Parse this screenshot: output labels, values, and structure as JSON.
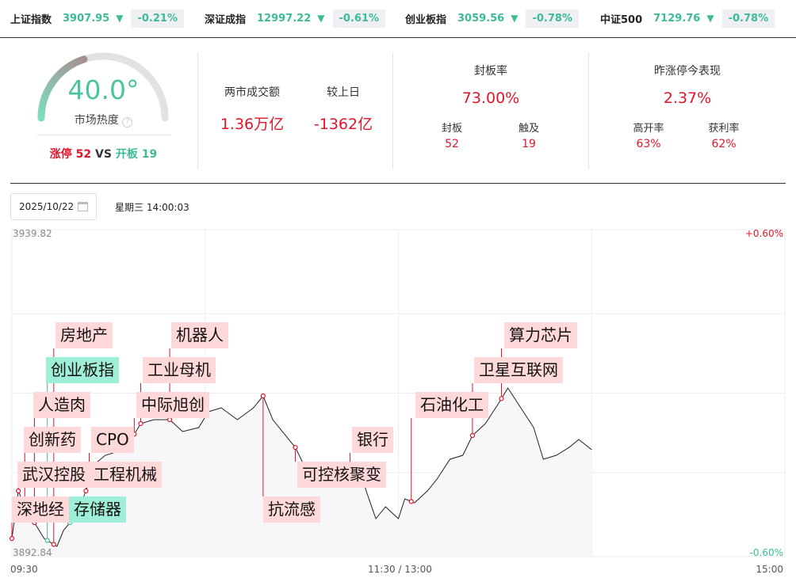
{
  "indices": [
    {
      "name": "上证指数",
      "value": "3907.95",
      "change": "-0.21%",
      "trend": "down"
    },
    {
      "name": "深证成指",
      "value": "12997.22",
      "change": "-0.61%",
      "trend": "down"
    },
    {
      "name": "创业板指",
      "value": "3059.56",
      "change": "-0.78%",
      "trend": "down"
    },
    {
      "name": "中证500",
      "value": "7129.76",
      "change": "-0.78%",
      "trend": "down"
    }
  ],
  "heat": {
    "value": "40.0°",
    "percent": 40,
    "label": "市场热度",
    "limit_up_label": "涨停",
    "limit_up": "52",
    "vs": "VS",
    "open_label": "开板",
    "open": "19"
  },
  "turnover": {
    "label": "两市成交额",
    "value": "1.36万亿",
    "cmp_label": "较上日",
    "cmp_value": "-1362亿"
  },
  "seal": {
    "title": "封板率",
    "value": "73.00%",
    "a_label": "封板",
    "a_value": "52",
    "b_label": "触及",
    "b_value": "19"
  },
  "yesterday": {
    "title": "昨涨停今表现",
    "value": "2.37%",
    "a_label": "高开率",
    "a_value": "63%",
    "b_label": "获利率",
    "b_value": "62%"
  },
  "date": "2025/10/22",
  "weekday": "星期三 14:00:03",
  "colors": {
    "up": "#e0152b",
    "down": "#3dbb93",
    "up_tag": "#ffd9d9",
    "down_tag": "#9fefd8"
  },
  "chart_data": {
    "type": "line",
    "ylim": [
      3892.84,
      3939.82
    ],
    "y_labels": {
      "top": "3939.82",
      "bottom": "3892.84",
      "top_pct": "+0.60%",
      "bottom_pct": "-0.60%"
    },
    "x_labels": {
      "start": "09:30",
      "mid": "11:30 / 13:00",
      "end": "15:00"
    },
    "points": [
      [
        "09:30",
        3894.83
      ],
      [
        "09:32",
        3901.86
      ],
      [
        "09:34",
        3899.52
      ],
      [
        "09:37",
        3897.17
      ],
      [
        "09:40",
        3894.83
      ],
      [
        "09:42",
        3894.24
      ],
      [
        "09:44",
        3893.66
      ],
      [
        "09:46",
        3896.0
      ],
      [
        "09:48",
        3897.17
      ],
      [
        "09:51",
        3899.52
      ],
      [
        "09:53",
        3901.86
      ],
      [
        "09:56",
        3905.96
      ],
      [
        "09:59",
        3907.13
      ],
      [
        "10:03",
        3907.72
      ],
      [
        "10:07",
        3909.48
      ],
      [
        "10:10",
        3911.82
      ],
      [
        "10:14",
        3912.4
      ],
      [
        "10:19",
        3912.4
      ],
      [
        "10:23",
        3910.65
      ],
      [
        "10:28",
        3911.23
      ],
      [
        "10:31",
        3913.58
      ],
      [
        "10:35",
        3914.16
      ],
      [
        "10:40",
        3912.4
      ],
      [
        "10:45",
        3914.16
      ],
      [
        "10:48",
        3915.92
      ],
      [
        "10:51",
        3912.4
      ],
      [
        "10:55",
        3910.06
      ],
      [
        "10:58",
        3908.3
      ],
      [
        "11:01",
        3905.38
      ],
      [
        "11:04",
        3904.2
      ],
      [
        "11:09",
        3903.03
      ],
      [
        "11:14",
        3904.2
      ],
      [
        "11:18",
        3905.38
      ],
      [
        "11:20",
        3901.86
      ],
      [
        "11:23",
        3897.76
      ],
      [
        "11:26",
        3899.52
      ],
      [
        "11:30",
        3897.76
      ],
      [
        "13:02",
        3900.69
      ],
      [
        "13:05",
        3900.1
      ],
      [
        "13:09",
        3901.86
      ],
      [
        "13:12",
        3903.62
      ],
      [
        "13:16",
        3906.55
      ],
      [
        "13:20",
        3907.13
      ],
      [
        "13:23",
        3910.06
      ],
      [
        "13:27",
        3911.82
      ],
      [
        "13:31",
        3914.75
      ],
      [
        "13:34",
        3917.09
      ],
      [
        "13:38",
        3914.16
      ],
      [
        "13:42",
        3911.23
      ],
      [
        "13:45",
        3906.55
      ],
      [
        "13:49",
        3907.13
      ],
      [
        "13:53",
        3908.3
      ],
      [
        "13:56",
        3909.48
      ],
      [
        "14:00",
        3907.96
      ]
    ],
    "annotations": [
      {
        "text": "深地经",
        "time": "09:30",
        "kind": "up"
      },
      {
        "text": "武汉控股",
        "time": "09:32",
        "kind": "up"
      },
      {
        "text": "创新药",
        "time": "09:34",
        "kind": "up"
      },
      {
        "text": "人造肉",
        "time": "09:37",
        "kind": "up"
      },
      {
        "text": "创业板指",
        "time": "09:41",
        "kind": "down"
      },
      {
        "text": "房地产",
        "time": "09:43",
        "kind": "up"
      },
      {
        "text": "存储器",
        "time": "09:48",
        "kind": "down"
      },
      {
        "text": "工程机械",
        "time": "09:53",
        "kind": "up"
      },
      {
        "text": "CPO",
        "time": "09:54",
        "kind": "up"
      },
      {
        "text": "中际旭创",
        "time": "10:08",
        "kind": "up"
      },
      {
        "text": "工业母机",
        "time": "10:10",
        "kind": "up"
      },
      {
        "text": "机器人",
        "time": "10:19",
        "kind": "up"
      },
      {
        "text": "抗流感",
        "time": "10:48",
        "kind": "up"
      },
      {
        "text": "可控核聚变",
        "time": "10:58",
        "kind": "up"
      },
      {
        "text": "银行",
        "time": "11:15",
        "kind": "up"
      },
      {
        "text": "石油化工",
        "time": "13:04",
        "kind": "up"
      },
      {
        "text": "卫星互联网",
        "time": "13:23",
        "kind": "up"
      },
      {
        "text": "算力芯片",
        "time": "13:32",
        "kind": "up"
      }
    ]
  }
}
